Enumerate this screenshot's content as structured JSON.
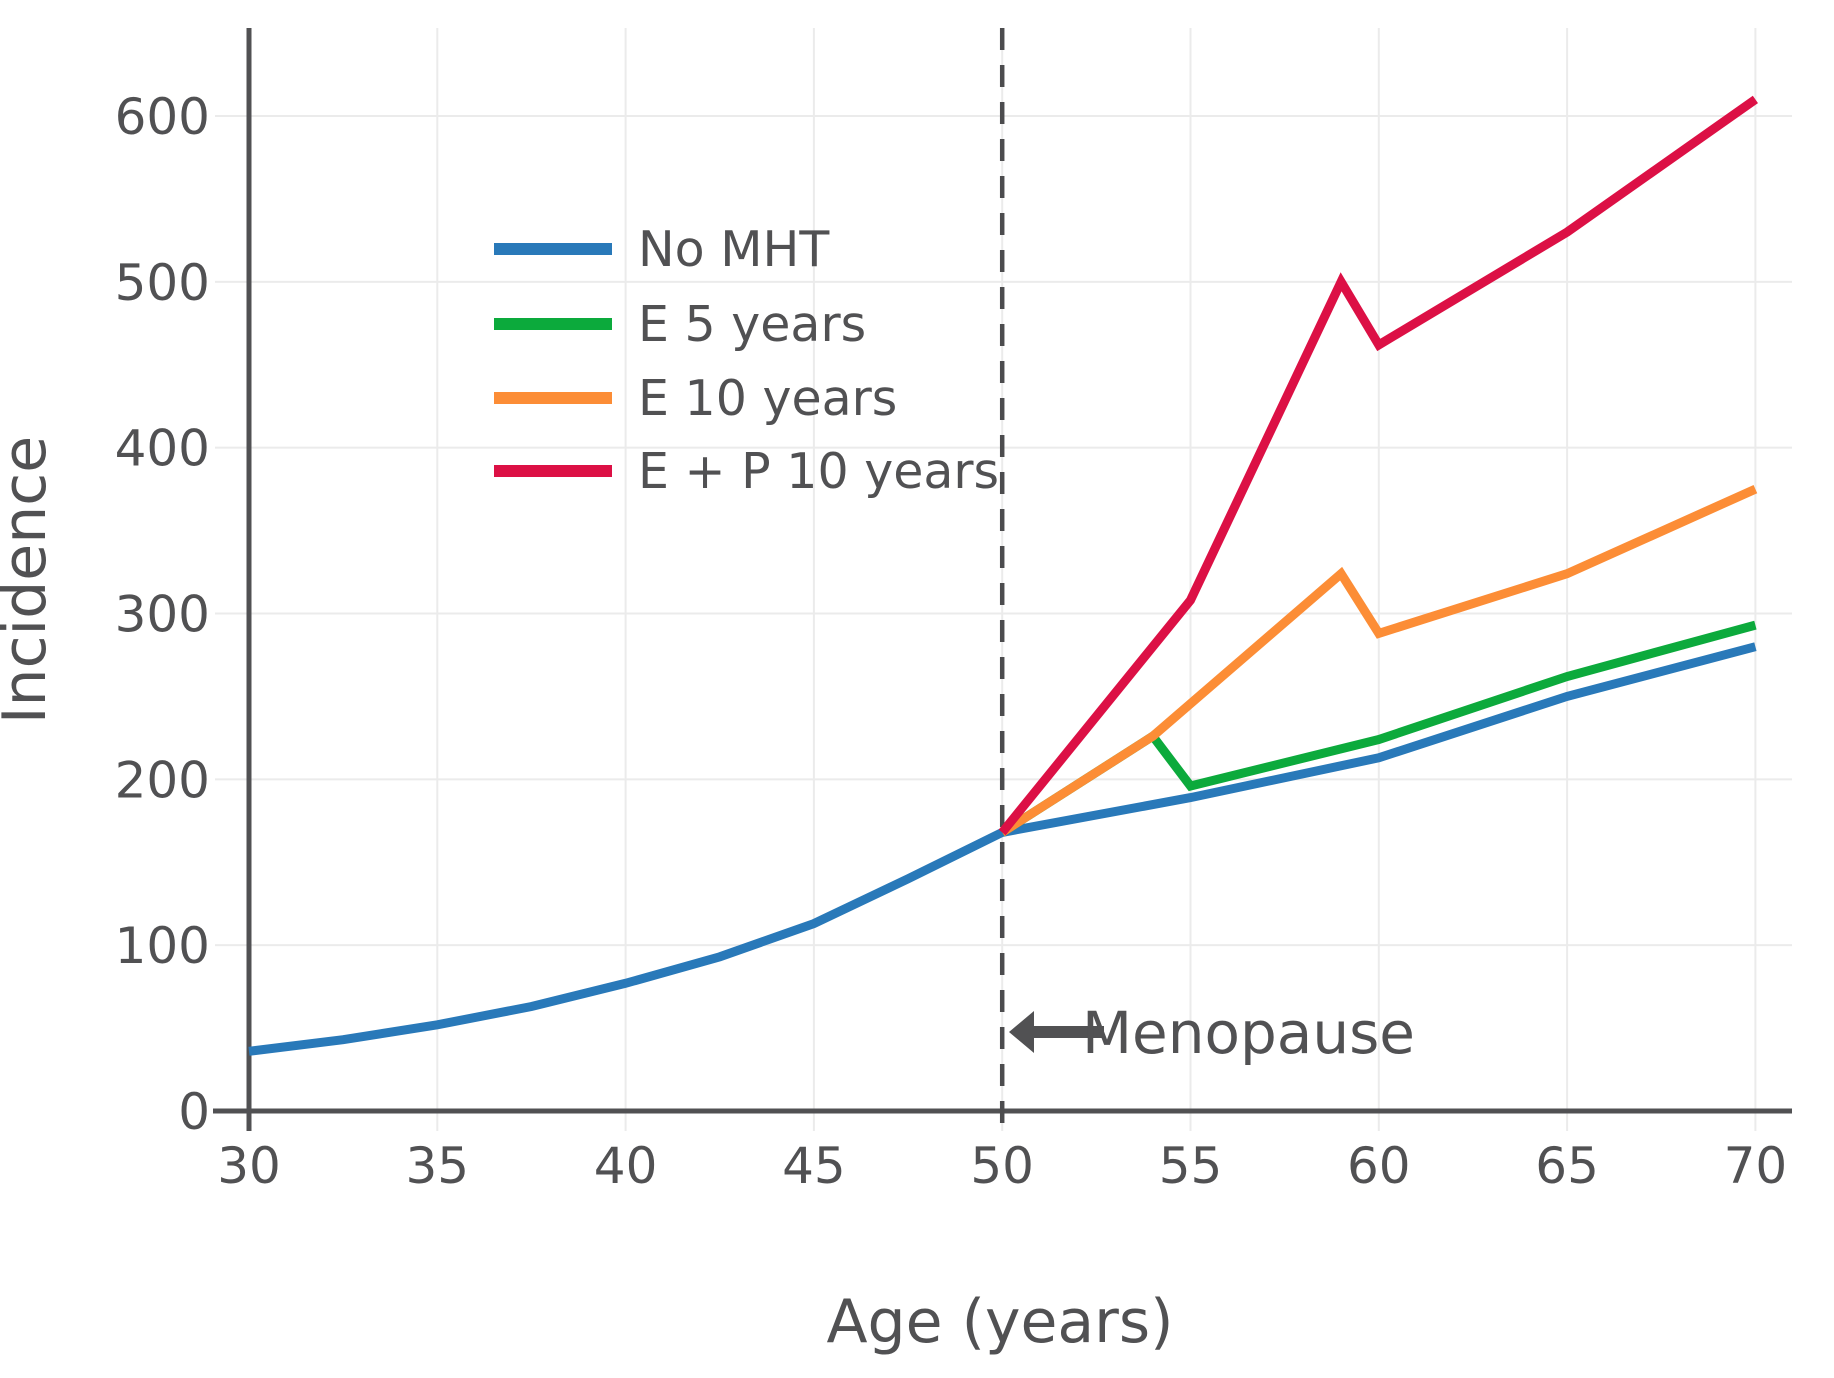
{
  "chart_data": {
    "type": "line",
    "title": "",
    "xlabel": "Age (years)",
    "ylabel": "Incidence",
    "xlim": [
      30,
      70
    ],
    "ylim": [
      0,
      660
    ],
    "x_ticks": [
      30,
      35,
      40,
      45,
      50,
      55,
      60,
      65,
      70
    ],
    "y_ticks": [
      0,
      100,
      200,
      300,
      400,
      500,
      600
    ],
    "grid": true,
    "legend_position": "upper-left-inside",
    "series": [
      {
        "name": "No MHT",
        "color": "#2979b9",
        "points": [
          [
            30,
            36
          ],
          [
            32.5,
            43
          ],
          [
            35,
            52
          ],
          [
            37.5,
            63
          ],
          [
            40,
            77
          ],
          [
            42.5,
            93
          ],
          [
            45,
            113
          ],
          [
            47.5,
            140
          ],
          [
            50,
            168
          ],
          [
            55,
            189
          ],
          [
            60,
            213
          ],
          [
            65,
            250
          ],
          [
            70,
            280
          ]
        ]
      },
      {
        "name": "E 5 years",
        "color": "#0caa3c",
        "points": [
          [
            50,
            168
          ],
          [
            54,
            226
          ],
          [
            55,
            196
          ],
          [
            60,
            224
          ],
          [
            65,
            262
          ],
          [
            70,
            293
          ]
        ]
      },
      {
        "name": "E 10 years",
        "color": "#fc8d36",
        "points": [
          [
            50,
            168
          ],
          [
            54,
            226
          ],
          [
            59,
            324
          ],
          [
            60,
            288
          ],
          [
            65,
            324
          ],
          [
            70,
            375
          ]
        ]
      },
      {
        "name": "E + P 10 years",
        "color": "#dc1045",
        "points": [
          [
            50,
            168
          ],
          [
            55,
            308
          ],
          [
            59,
            500
          ],
          [
            60,
            462
          ],
          [
            65,
            530
          ],
          [
            70,
            610
          ]
        ]
      }
    ],
    "vline": {
      "x": 50,
      "style": "dashed",
      "color": "#4c4c4e"
    },
    "annotation": {
      "text": "Menopause",
      "x": 50,
      "y": 47,
      "arrow": "left"
    },
    "axis_color": "#515153",
    "grid_color": "#ebebeb",
    "text_color": "#515153"
  }
}
